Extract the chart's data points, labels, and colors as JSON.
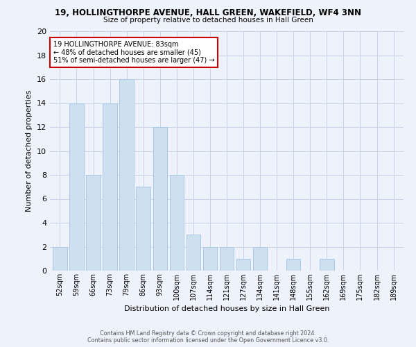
{
  "title1": "19, HOLLINGTHORPE AVENUE, HALL GREEN, WAKEFIELD, WF4 3NN",
  "title2": "Size of property relative to detached houses in Hall Green",
  "xlabel": "Distribution of detached houses by size in Hall Green",
  "ylabel": "Number of detached properties",
  "categories": [
    "52sqm",
    "59sqm",
    "66sqm",
    "73sqm",
    "79sqm",
    "86sqm",
    "93sqm",
    "100sqm",
    "107sqm",
    "114sqm",
    "121sqm",
    "127sqm",
    "134sqm",
    "141sqm",
    "148sqm",
    "155sqm",
    "162sqm",
    "169sqm",
    "175sqm",
    "182sqm",
    "189sqm"
  ],
  "values": [
    2,
    14,
    8,
    14,
    16,
    7,
    12,
    8,
    3,
    2,
    2,
    1,
    2,
    0,
    1,
    0,
    1,
    0,
    0,
    0,
    0
  ],
  "bar_color": "#cce0f0",
  "bar_edgecolor": "#aac8e8",
  "annotation_line1": "19 HOLLINGTHORPE AVENUE: 83sqm",
  "annotation_line2": "← 48% of detached houses are smaller (45)",
  "annotation_line3": "51% of semi-detached houses are larger (47) →",
  "annotation_box_facecolor": "#ffffff",
  "annotation_box_edgecolor": "#cc0000",
  "ylim": [
    0,
    20
  ],
  "yticks": [
    0,
    2,
    4,
    6,
    8,
    10,
    12,
    14,
    16,
    18,
    20
  ],
  "footer1": "Contains HM Land Registry data © Crown copyright and database right 2024.",
  "footer2": "Contains public sector information licensed under the Open Government Licence v3.0.",
  "bg_color": "#eef2fa",
  "grid_color": "#c8d4e8"
}
